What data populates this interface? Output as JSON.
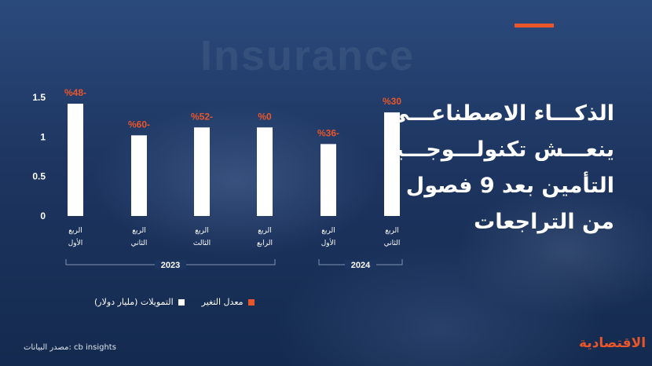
{
  "headline": {
    "lines": [
      "الذكـــاء الاصطناعـــي",
      "ينعـــش تكنولـــوجـــيا",
      "التأمين بعد 9 فصول",
      "من التراجعات"
    ]
  },
  "background_word": "Insurance",
  "colors": {
    "accent": "#e8562a",
    "bars": "#ffffff",
    "background": "#1d3560"
  },
  "chart_data": {
    "type": "bar",
    "y_ticks": [
      "1.5",
      "1",
      "0.5",
      "0"
    ],
    "ylim": [
      0,
      1.5
    ],
    "categories": [
      "الربع الأول",
      "الربع الثاني",
      "الربع الثالث",
      "الربع الرابع",
      "الربع الأول",
      "الربع الثاني"
    ],
    "category_lines": [
      [
        "الربع",
        "الأول"
      ],
      [
        "الربع",
        "الثاني"
      ],
      [
        "الربع",
        "الثالث"
      ],
      [
        "الربع",
        "الرابع"
      ],
      [
        "الربع",
        "الأول"
      ],
      [
        "الربع",
        "الثاني"
      ]
    ],
    "series": [
      {
        "name": "التمويلات (مليار دولار)",
        "values": [
          1.42,
          1.02,
          1.12,
          1.12,
          0.91,
          1.31
        ]
      },
      {
        "name": "معدل التغير",
        "labels": [
          "%48-",
          "%60-",
          "%52-",
          "%0",
          "%36-",
          "%30"
        ]
      }
    ],
    "groups": [
      {
        "label": "2023",
        "start": 0,
        "end": 3
      },
      {
        "label": "2024",
        "start": 4,
        "end": 5
      }
    ],
    "legend": [
      {
        "label": "التمويلات (مليار دولار)",
        "color": "#ffffff"
      },
      {
        "label": "معدل التغير",
        "color": "#e8562a"
      }
    ],
    "legend_position": "bottom"
  },
  "source": "مصدر البيانات: cb insights",
  "logo": "الاقتصادية"
}
